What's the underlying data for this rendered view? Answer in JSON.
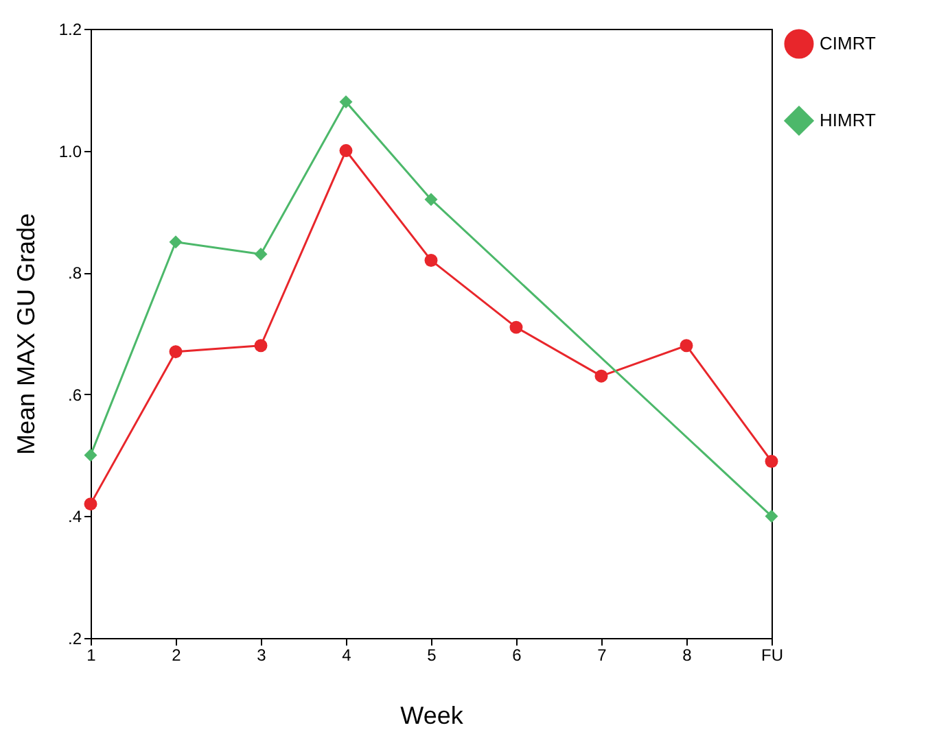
{
  "chart_data": {
    "type": "line",
    "xlabel": "Week",
    "ylabel": "Mean MAX GU Grade",
    "categories": [
      "1",
      "2",
      "3",
      "4",
      "5",
      "6",
      "7",
      "8",
      "FU"
    ],
    "ylim": [
      0.2,
      1.2
    ],
    "yticks": [
      {
        "value": 0.2,
        "label": ".2"
      },
      {
        "value": 0.4,
        "label": ".4"
      },
      {
        "value": 0.6,
        "label": ".6"
      },
      {
        "value": 0.8,
        "label": ".8"
      },
      {
        "value": 1.0,
        "label": "1.0"
      },
      {
        "value": 1.2,
        "label": "1.2"
      }
    ],
    "grid": false,
    "legend": "right",
    "series": [
      {
        "name": "CIMRT",
        "color": "#e8262b",
        "marker": "circle",
        "values": [
          0.42,
          0.67,
          0.68,
          1.0,
          0.82,
          0.71,
          0.63,
          0.68,
          0.49
        ]
      },
      {
        "name": "HIMRT",
        "color": "#4cb86a",
        "marker": "diamond",
        "x": [
          "1",
          "2",
          "3",
          "4",
          "5",
          "FU"
        ],
        "values": [
          0.5,
          0.85,
          0.83,
          1.08,
          0.92,
          0.4
        ]
      }
    ]
  }
}
